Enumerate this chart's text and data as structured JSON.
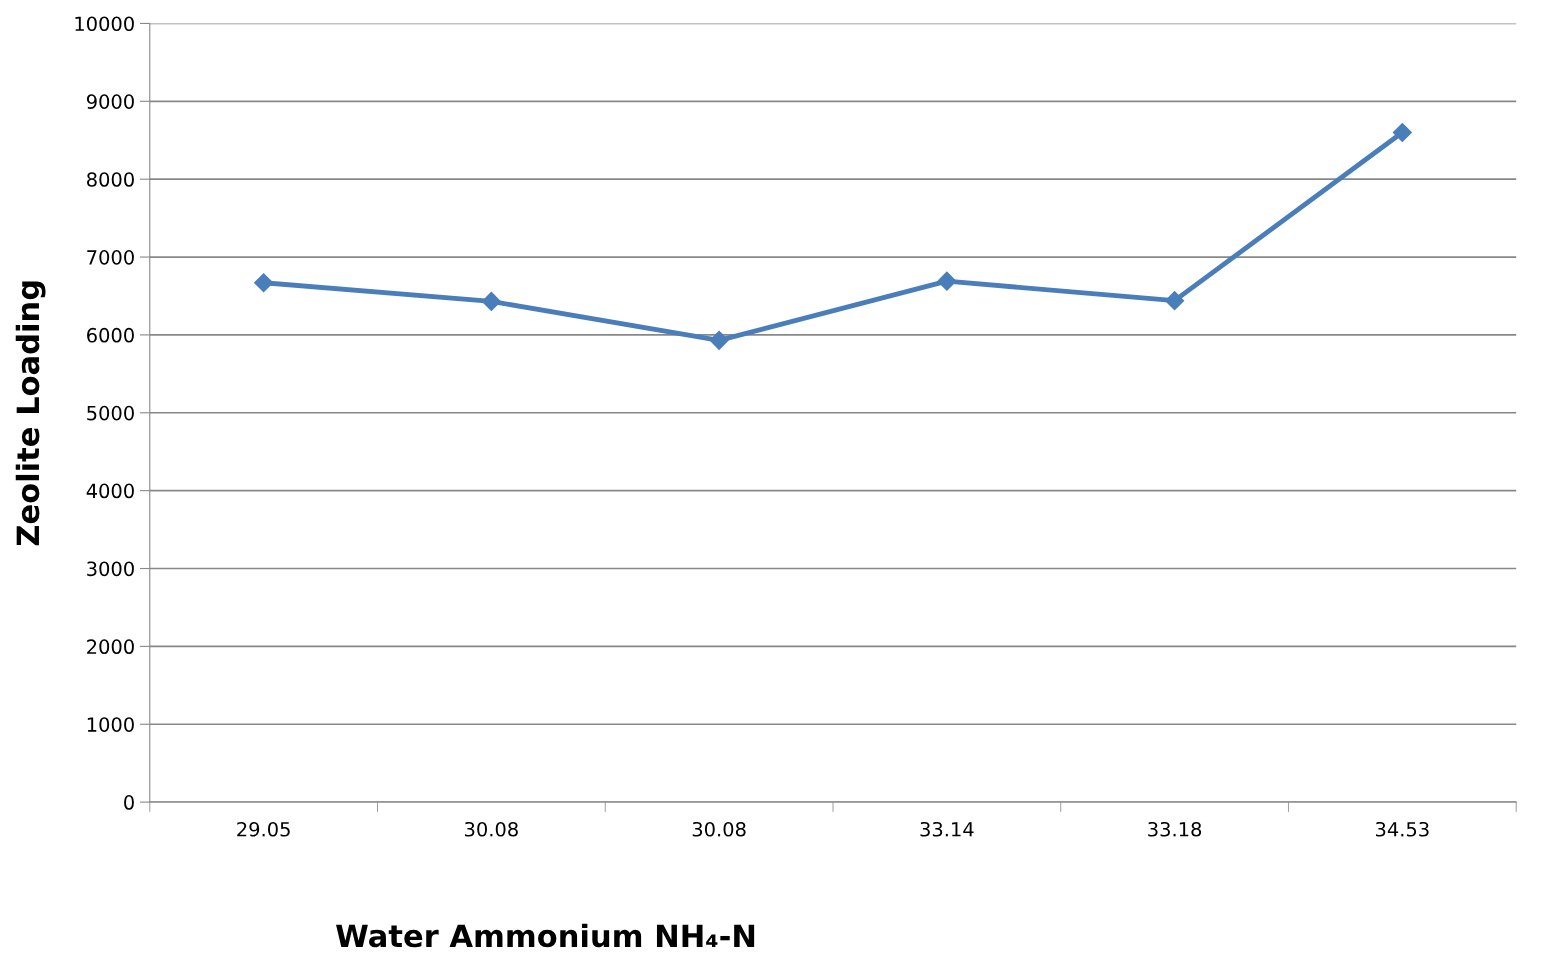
{
  "chart_data": {
    "type": "line",
    "xlabel": "Water Ammonium NH₄-N",
    "ylabel": "Zeolite Loading",
    "categories": [
      "29.05",
      "30.08",
      "30.08",
      "33.14",
      "33.18",
      "34.53"
    ],
    "series": [
      {
        "color": "#4a7ebb",
        "values": [
          6670,
          6430,
          5930,
          6690,
          6440,
          8600
        ]
      }
    ],
    "ylim": [
      0,
      10000
    ],
    "yticks": [
      0,
      1000,
      2000,
      3000,
      4000,
      5000,
      6000,
      7000,
      8000,
      9000,
      10000
    ],
    "grid": "y",
    "marker": "diamond",
    "line_style": "solid"
  }
}
